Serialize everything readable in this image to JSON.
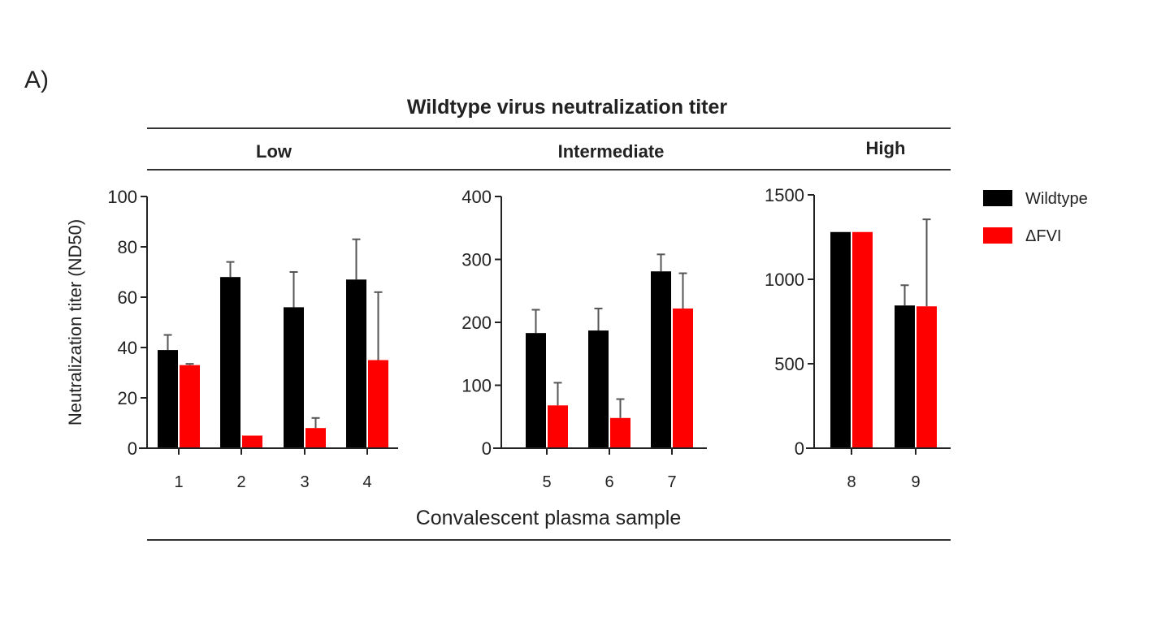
{
  "panel_label": "A)",
  "title": "Wildtype virus neutralization titer",
  "xlabel": "Convalescent plasma sample",
  "ylabel": "Neutralization titer (ND50)",
  "colors": {
    "Wildtype": "#000000",
    "dFVI": "#ff0000",
    "error": "#555555"
  },
  "chart_data": {
    "type": "bar",
    "title": "Wildtype virus neutralization titer",
    "xlabel": "Convalescent plasma sample",
    "ylabel": "Neutralization titer (ND50)",
    "legend": {
      "position": "right",
      "entries": [
        "Wildtype",
        "ΔFVI"
      ]
    },
    "grid": false,
    "panels": [
      {
        "name": "Low",
        "ylim": [
          0,
          100
        ],
        "yticks": [
          0,
          20,
          40,
          60,
          80,
          100
        ],
        "categories": [
          "1",
          "2",
          "3",
          "4"
        ],
        "series": [
          {
            "name": "Wildtype",
            "values": [
              39,
              68,
              56,
              67
            ],
            "error_upper": [
              45,
              74,
              70,
              83
            ]
          },
          {
            "name": "ΔFVI",
            "values": [
              33,
              5,
              8,
              35
            ],
            "error_upper": [
              33.5,
              5,
              12,
              62
            ]
          }
        ]
      },
      {
        "name": "Intermediate",
        "ylim": [
          0,
          400
        ],
        "yticks": [
          0,
          100,
          200,
          300,
          400
        ],
        "categories": [
          "5",
          "6",
          "7"
        ],
        "series": [
          {
            "name": "Wildtype",
            "values": [
              183,
              187,
              281
            ],
            "error_upper": [
              220,
              222,
              308
            ]
          },
          {
            "name": "ΔFVI",
            "values": [
              68,
              48,
              222
            ],
            "error_upper": [
              104,
              78,
              278
            ]
          }
        ]
      },
      {
        "name": "High",
        "ylim": [
          0,
          1500
        ],
        "yticks": [
          0,
          500,
          1000,
          1500
        ],
        "categories": [
          "8",
          "9"
        ],
        "series": [
          {
            "name": "Wildtype",
            "values": [
              1280,
              845
            ],
            "error_upper": [
              1280,
              965
            ]
          },
          {
            "name": "ΔFVI",
            "values": [
              1280,
              840
            ],
            "error_upper": [
              1280,
              1355
            ]
          }
        ]
      }
    ]
  }
}
